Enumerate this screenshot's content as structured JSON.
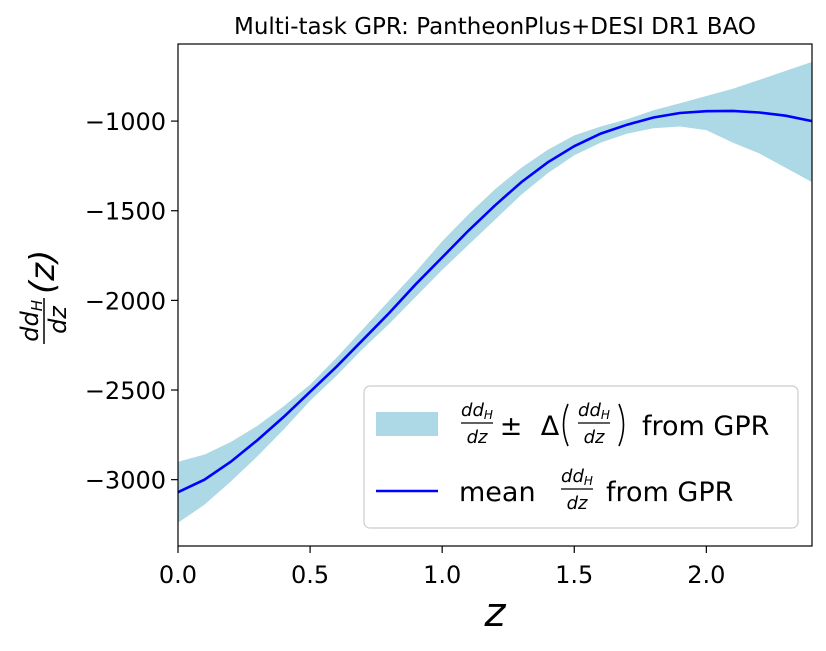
{
  "chart_data": {
    "type": "line",
    "title": "Multi-task GPR: PantheonPlus+DESI DR1 BAO",
    "xlabel": "z",
    "ylabel": "dd_H/dz (z)",
    "xlim": [
      0.0,
      2.4
    ],
    "ylim": [
      -3370,
      -570
    ],
    "xticks": [
      0.0,
      0.5,
      1.0,
      1.5,
      2.0
    ],
    "xtick_labels": [
      "0.0",
      "0.5",
      "1.0",
      "1.5",
      "2.0"
    ],
    "yticks": [
      -3000,
      -2500,
      -2000,
      -1500,
      -1000
    ],
    "ytick_labels": [
      "−3000",
      "−2500",
      "−2000",
      "−1500",
      "−1000"
    ],
    "grid": false,
    "legend_placement": "lower right",
    "colors": {
      "mean": "#0000ff",
      "band": "#add8e6"
    },
    "series": [
      {
        "name": "mean dd_H/dz from GPR",
        "kind": "line",
        "x": [
          0.0,
          0.1,
          0.2,
          0.3,
          0.4,
          0.5,
          0.6,
          0.7,
          0.8,
          0.9,
          1.0,
          1.1,
          1.2,
          1.3,
          1.4,
          1.5,
          1.6,
          1.7,
          1.8,
          1.9,
          2.0,
          2.1,
          2.2,
          2.3,
          2.4
        ],
        "y": [
          -3070,
          -3000,
          -2900,
          -2780,
          -2650,
          -2510,
          -2370,
          -2220,
          -2070,
          -1910,
          -1760,
          -1610,
          -1470,
          -1340,
          -1230,
          -1140,
          -1070,
          -1020,
          -980,
          -955,
          -945,
          -943,
          -952,
          -970,
          -1000
        ]
      },
      {
        "name": "dd_H/dz ± Δ(dd_H/dz) from GPR",
        "kind": "band",
        "x": [
          0.0,
          0.1,
          0.2,
          0.3,
          0.4,
          0.5,
          0.6,
          0.7,
          0.8,
          0.9,
          1.0,
          1.1,
          1.2,
          1.3,
          1.4,
          1.5,
          1.6,
          1.7,
          1.8,
          1.9,
          2.0,
          2.1,
          2.2,
          2.3,
          2.4
        ],
        "upper": [
          -2900,
          -2860,
          -2790,
          -2700,
          -2590,
          -2470,
          -2320,
          -2160,
          -2000,
          -1840,
          -1670,
          -1520,
          -1380,
          -1260,
          -1160,
          -1080,
          -1030,
          -990,
          -940,
          -900,
          -860,
          -820,
          -770,
          -720,
          -670
        ],
        "lower": [
          -3240,
          -3140,
          -3010,
          -2870,
          -2720,
          -2560,
          -2420,
          -2270,
          -2130,
          -1980,
          -1830,
          -1690,
          -1550,
          -1410,
          -1290,
          -1190,
          -1120,
          -1070,
          -1040,
          -1030,
          -1050,
          -1120,
          -1180,
          -1260,
          -1340
        ]
      }
    ]
  },
  "legend": {
    "band_frac": {
      "num": "dd",
      "num_sub": "H",
      "den": "dz"
    },
    "band_pm": "±",
    "band_delta": "Δ",
    "band_suffix": "from GPR",
    "mean_prefix": "mean",
    "mean_frac": {
      "num": "dd",
      "num_sub": "H",
      "den": "dz"
    },
    "mean_suffix": "from GPR"
  },
  "ylabel_parts": {
    "num": "dd",
    "num_sub": "H",
    "den": "dz",
    "arg": "(z)"
  },
  "xlabel_text": "z"
}
